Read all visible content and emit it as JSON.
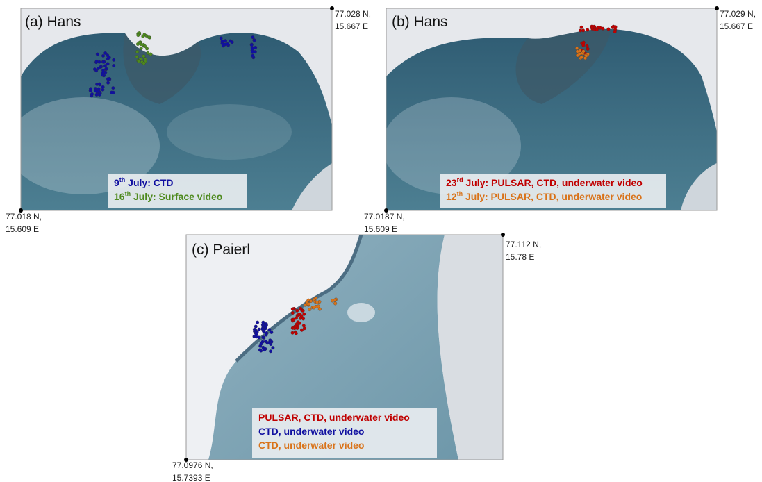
{
  "panels": [
    {
      "label": "(a) Hans",
      "top_right": [
        "77.028 N,",
        "15.667 E"
      ],
      "bottom_left": [
        "77.018 N,",
        "15.609 E"
      ],
      "legend": [
        {
          "parts": [
            "9",
            "th",
            " July: CTD"
          ],
          "color": "#1010a0"
        },
        {
          "parts": [
            "16",
            "th",
            " July: Surface video"
          ],
          "color": "#4e8a1e"
        }
      ]
    },
    {
      "label": "(b) Hans",
      "top_right": [
        "77.029 N,",
        "15.667 E"
      ],
      "bottom_left": [
        "77.0187 N,",
        "15.609 E"
      ],
      "legend": [
        {
          "parts": [
            "23",
            "rd",
            " July: PULSAR, CTD, underwater video"
          ],
          "color": "#c00000"
        },
        {
          "parts": [
            "12",
            "th",
            " July: PULSAR, CTD, underwater video"
          ],
          "color": "#d9731a"
        }
      ]
    },
    {
      "label": "(c) Paierl",
      "top_right": [
        "77.112 N,",
        "15.78 E"
      ],
      "bottom_left": [
        "77.0976 N,",
        "15.7393 E"
      ],
      "legend": [
        {
          "parts": [
            "PULSAR, CTD, underwater video"
          ],
          "color": "#c00000"
        },
        {
          "parts": [
            "CTD, underwater video"
          ],
          "color": "#1010a0"
        },
        {
          "parts": [
            "CTD, underwater video"
          ],
          "color": "#d9731a"
        }
      ]
    }
  ]
}
